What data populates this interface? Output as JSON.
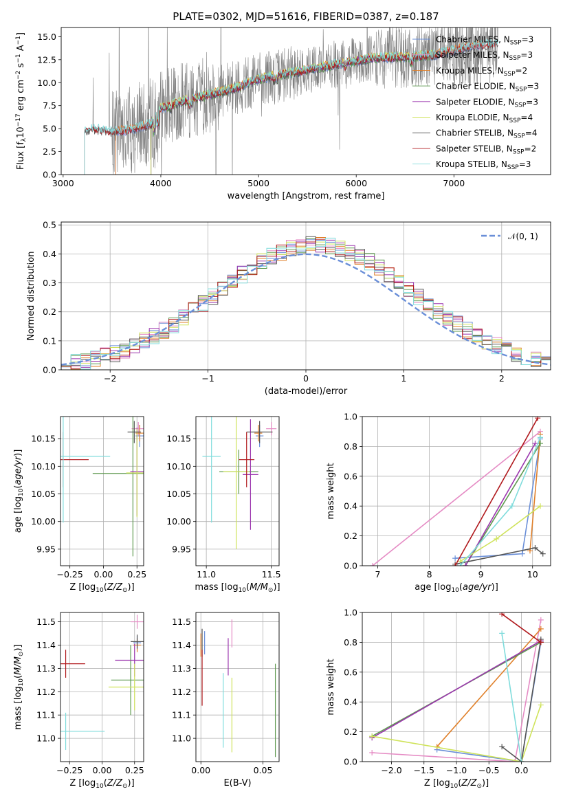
{
  "figure": {
    "title": "PLATE=0302, MJD=51616, FIBERID=0387, z=0.187"
  },
  "colors": {
    "Chabrier MILES": "#6a8fd8",
    "Salpeter MILES": "#e58bc4",
    "Kroupa MILES": "#e0802a",
    "Chabrier ELODIE": "#5f9a50",
    "Salpeter ELODIE": "#9b35ae",
    "Kroupa ELODIE": "#cfe35a",
    "Chabrier STELIB": "#555555",
    "Salpeter STELIB": "#b0181c",
    "Kroupa STELIB": "#80dcdc",
    "data": "#808080",
    "normal": "#6a8fd8"
  },
  "chart_data": [
    {
      "id": "spectrum",
      "type": "line",
      "title": "PLATE=0302, MJD=51616, FIBERID=0387, z=0.187",
      "xlabel": "wavelength [Angstrom, rest frame]",
      "ylabel": "Flux [f_λ 10^-17 erg cm^-2 s^-1 A^-1]",
      "xlim": [
        2980,
        7990
      ],
      "ylim": [
        0,
        16
      ],
      "xticks": [
        3000,
        4000,
        5000,
        6000,
        7000
      ],
      "yticks": [
        0.0,
        2.5,
        5.0,
        7.5,
        10.0,
        12.5,
        15.0
      ],
      "grid": false,
      "legend_position": "top-right",
      "continuum": {
        "x": [
          3220,
          3300,
          3500,
          3700,
          3900,
          4000,
          4200,
          4500,
          4800,
          5000,
          5300,
          5600,
          5900,
          6200,
          6500,
          6800,
          7000,
          7200,
          7450
        ],
        "y": [
          4.8,
          5.0,
          4.7,
          4.9,
          5.5,
          7.2,
          7.9,
          8.7,
          9.5,
          10.4,
          11.0,
          11.6,
          12.2,
          12.7,
          12.8,
          13.0,
          13.5,
          14.0,
          14.3
        ]
      },
      "series": [
        {
          "name": "Chabrier MILES, N_SSP=3",
          "start": 3540,
          "end": 7300
        },
        {
          "name": "Salpeter MILES, N_SSP=3",
          "start": 3540,
          "end": 7300
        },
        {
          "name": "Kroupa MILES, N_SSP=2",
          "start": 3540,
          "end": 7300
        },
        {
          "name": "Chabrier ELODIE, N_SSP=3",
          "start": 3900,
          "end": 6800
        },
        {
          "name": "Salpeter ELODIE, N_SSP=3",
          "start": 3900,
          "end": 6800
        },
        {
          "name": "Kroupa ELODIE, N_SSP=4",
          "start": 3900,
          "end": 6800
        },
        {
          "name": "Chabrier STELIB, N_SSP=4",
          "start": 3220,
          "end": 7450
        },
        {
          "name": "Salpeter STELIB, N_SSP=2",
          "start": 3220,
          "end": 7450
        },
        {
          "name": "Kroupa STELIB, N_SSP=3",
          "start": 3220,
          "end": 7450
        }
      ]
    },
    {
      "id": "residuals",
      "type": "line",
      "xlabel": "(data-model)/error",
      "ylabel": "Normed distribution",
      "xlim": [
        -2.5,
        2.5
      ],
      "ylim": [
        0,
        0.51
      ],
      "xticks": [
        -2,
        -1,
        0,
        1,
        2
      ],
      "yticks": [
        0.0,
        0.1,
        0.2,
        0.3,
        0.4,
        0.5
      ],
      "grid": true,
      "legend_position": "top-right",
      "legend": "𝒩(0, 1)",
      "bin_width": 0.1,
      "bin_start": -2.5
    },
    {
      "id": "age_vs_Z",
      "type": "scatter",
      "xlabel": "Z [log10(Z/Z⊙)]",
      "ylabel": "age [log10(age/yr)]",
      "xlim": [
        -0.32,
        0.3
      ],
      "ylim": [
        9.92,
        10.19
      ],
      "xticks": [
        -0.25,
        0.0,
        0.25
      ],
      "yticks": [
        9.95,
        10.0,
        10.05,
        10.1,
        10.15
      ],
      "grid": true,
      "points": [
        {
          "model": "Chabrier MILES",
          "x": 0.27,
          "y": 10.155,
          "xerr": 0.03,
          "yerr": 0.02
        },
        {
          "model": "Salpeter MILES",
          "x": 0.26,
          "y": 10.168,
          "xerr": 0.05,
          "yerr": 0.012
        },
        {
          "model": "Kroupa MILES",
          "x": 0.27,
          "y": 10.16,
          "xerr": 0.03,
          "yerr": 0.015
        },
        {
          "model": "Chabrier ELODIE",
          "x": 0.22,
          "y": 10.087,
          "xerr": 0.3,
          "yerr": 0.15
        },
        {
          "model": "Salpeter ELODIE",
          "x": 0.25,
          "y": 10.09,
          "xerr": 0.05,
          "yerr": 0.08
        },
        {
          "model": "Kroupa ELODIE",
          "x": 0.25,
          "y": 10.088,
          "xerr": 0.08,
          "yerr": 0.08
        },
        {
          "model": "Chabrier STELIB",
          "x": 0.23,
          "y": 10.162,
          "xerr": 0.05,
          "yerr": 0.02
        },
        {
          "model": "Salpeter STELIB",
          "x": -0.3,
          "y": 10.112,
          "xerr": 0.19,
          "yerr": 0.05
        },
        {
          "model": "Kroupa STELIB",
          "x": -0.3,
          "y": 10.118,
          "xerr": 0.35,
          "yerr": 0.12
        }
      ]
    },
    {
      "id": "age_vs_mass",
      "type": "scatter",
      "xlabel": "mass [log10(M/M⊙)]",
      "ylabel": "",
      "xlim": [
        10.92,
        11.56
      ],
      "ylim": [
        9.92,
        10.19
      ],
      "xticks": [
        11.0,
        11.5
      ],
      "yticks": [
        9.95,
        10.0,
        10.05,
        10.1,
        10.15
      ],
      "grid": true,
      "points": [
        {
          "model": "Chabrier MILES",
          "x": 11.41,
          "y": 10.155,
          "xerr": 0.03,
          "yerr": 0.02
        },
        {
          "model": "Salpeter MILES",
          "x": 11.5,
          "y": 10.168,
          "xerr": 0.04,
          "yerr": 0.012
        },
        {
          "model": "Kroupa MILES",
          "x": 11.4,
          "y": 10.16,
          "xerr": 0.03,
          "yerr": 0.015
        },
        {
          "model": "Chabrier ELODIE",
          "x": 11.25,
          "y": 10.09,
          "xerr": 0.15,
          "yerr": 0.04
        },
        {
          "model": "Salpeter ELODIE",
          "x": 11.34,
          "y": 10.085,
          "xerr": 0.06,
          "yerr": 0.1
        },
        {
          "model": "Kroupa ELODIE",
          "x": 11.23,
          "y": 10.09,
          "xerr": 0.1,
          "yerr": 0.14
        },
        {
          "model": "Chabrier STELIB",
          "x": 11.41,
          "y": 10.162,
          "xerr": 0.1,
          "yerr": 0.02
        },
        {
          "model": "Salpeter STELIB",
          "x": 11.31,
          "y": 10.112,
          "xerr": 0.06,
          "yerr": 0.05
        },
        {
          "model": "Kroupa STELIB",
          "x": 11.04,
          "y": 10.118,
          "xerr": 0.07,
          "yerr": 0.12
        }
      ]
    },
    {
      "id": "mass_weight_vs_age",
      "type": "line",
      "xlabel": "age [log10(age/yr)]",
      "ylabel": "mass weight",
      "xlim": [
        6.7,
        10.35
      ],
      "ylim": [
        0,
        1
      ],
      "xticks": [
        7,
        8,
        9,
        10
      ],
      "yticks": [
        0.0,
        0.2,
        0.4,
        0.6,
        0.8,
        1.0
      ],
      "grid": true,
      "series": [
        {
          "model": "Chabrier MILES",
          "x": [
            8.5,
            9.8,
            10.15
          ],
          "y": [
            0.05,
            0.08,
            0.85
          ]
        },
        {
          "model": "Salpeter MILES",
          "x": [
            6.9,
            10.15
          ],
          "y": [
            0.0,
            0.9
          ]
        },
        {
          "model": "Kroupa MILES",
          "x": [
            9.95,
            10.15
          ],
          "y": [
            0.1,
            0.88
          ]
        },
        {
          "model": "Chabrier ELODIE",
          "x": [
            8.7,
            10.15
          ],
          "y": [
            0.0,
            0.82
          ]
        },
        {
          "model": "Salpeter ELODIE",
          "x": [
            8.7,
            10.05
          ],
          "y": [
            0.0,
            0.82
          ]
        },
        {
          "model": "Kroupa ELODIE",
          "x": [
            8.6,
            9.3,
            10.15
          ],
          "y": [
            0.03,
            0.18,
            0.4
          ]
        },
        {
          "model": "Chabrier STELIB",
          "x": [
            8.5,
            10.05,
            10.2
          ],
          "y": [
            0.01,
            0.12,
            0.08
          ]
        },
        {
          "model": "Salpeter STELIB",
          "x": [
            8.5,
            10.1
          ],
          "y": [
            0.0,
            0.99
          ]
        },
        {
          "model": "Kroupa STELIB",
          "x": [
            8.6,
            9.6,
            10.15
          ],
          "y": [
            0.0,
            0.4,
            0.86
          ]
        }
      ]
    },
    {
      "id": "mass_vs_Z",
      "type": "scatter",
      "xlabel": "Z [log10(Z/Z⊙)]",
      "ylabel": "mass [log10(M/M⊙)]",
      "xlim": [
        -0.32,
        0.32
      ],
      "ylim": [
        10.9,
        11.54
      ],
      "xticks": [
        -0.25,
        0.0,
        0.25
      ],
      "yticks": [
        11.0,
        11.1,
        11.2,
        11.3,
        11.4,
        11.5
      ],
      "grid": true,
      "points": [
        {
          "model": "Chabrier MILES",
          "x": 0.27,
          "y": 11.41,
          "xerr": 0.03,
          "yerr": 0.03
        },
        {
          "model": "Salpeter MILES",
          "x": 0.27,
          "y": 11.5,
          "xerr": 0.05,
          "yerr": 0.03
        },
        {
          "model": "Kroupa MILES",
          "x": 0.27,
          "y": 11.4,
          "xerr": 0.03,
          "yerr": 0.03
        },
        {
          "model": "Chabrier ELODIE",
          "x": 0.22,
          "y": 11.25,
          "xerr": 0.15,
          "yerr": 0.15
        },
        {
          "model": "Salpeter ELODIE",
          "x": 0.25,
          "y": 11.335,
          "xerr": 0.15,
          "yerr": 0.07
        },
        {
          "model": "Kroupa ELODIE",
          "x": 0.25,
          "y": 11.22,
          "xerr": 0.2,
          "yerr": 0.1
        },
        {
          "model": "Chabrier STELIB",
          "x": 0.27,
          "y": 11.415,
          "xerr": 0.05,
          "yerr": 0.03
        },
        {
          "model": "Salpeter STELIB",
          "x": -0.28,
          "y": 11.32,
          "xerr": 0.15,
          "yerr": 0.06
        },
        {
          "model": "Kroupa STELIB",
          "x": -0.28,
          "y": 11.03,
          "xerr": 0.3,
          "yerr": 0.08
        }
      ]
    },
    {
      "id": "mass_vs_EBV",
      "type": "scatter",
      "xlabel": "E(B-V)",
      "ylabel": "",
      "xlim": [
        -0.004,
        0.063
      ],
      "ylim": [
        10.9,
        11.54
      ],
      "xticks": [
        0.0,
        0.05
      ],
      "yticks": [
        11.0,
        11.1,
        11.2,
        11.3,
        11.4,
        11.5
      ],
      "grid": true,
      "points": [
        {
          "model": "Chabrier MILES",
          "x": 0.003,
          "y": 11.41,
          "xerr": 0,
          "yerr": 0.05
        },
        {
          "model": "Salpeter MILES",
          "x": 0.025,
          "y": 11.45,
          "xerr": 0,
          "yerr": 0.06
        },
        {
          "model": "Kroupa MILES",
          "x": 0.0,
          "y": 11.4,
          "xerr": 0,
          "yerr": 0.05
        },
        {
          "model": "Chabrier ELODIE",
          "x": 0.06,
          "y": 11.12,
          "xerr": 0,
          "yerr": 0.2
        },
        {
          "model": "Salpeter ELODIE",
          "x": 0.022,
          "y": 11.35,
          "xerr": 0,
          "yerr": 0.08
        },
        {
          "model": "Kroupa ELODIE",
          "x": 0.025,
          "y": 11.1,
          "xerr": 0,
          "yerr": 0.16
        },
        {
          "model": "Chabrier STELIB",
          "x": 0.001,
          "y": 11.41,
          "xerr": 0,
          "yerr": 0.06
        },
        {
          "model": "Salpeter STELIB",
          "x": 0.001,
          "y": 11.26,
          "xerr": 0,
          "yerr": 0.12
        },
        {
          "model": "Kroupa STELIB",
          "x": 0.018,
          "y": 11.12,
          "xerr": 0,
          "yerr": 0.16
        }
      ]
    },
    {
      "id": "mass_weight_vs_Z",
      "type": "line",
      "xlabel": "Z [log10(Z/Z⊙)]",
      "ylabel": "mass weight",
      "xlim": [
        -2.45,
        0.45
      ],
      "ylim": [
        0,
        1
      ],
      "xticks": [
        -2.0,
        -1.5,
        -1.0,
        -0.5,
        0.0
      ],
      "yticks": [
        0.0,
        0.2,
        0.4,
        0.6,
        0.8,
        1.0
      ],
      "grid": true,
      "series": [
        {
          "model": "Chabrier MILES",
          "x": [
            -1.3,
            0.0,
            0.3
          ],
          "y": [
            0.08,
            0.0,
            0.8
          ]
        },
        {
          "model": "Salpeter MILES",
          "x": [
            -2.3,
            -0.1,
            0.3
          ],
          "y": [
            0.06,
            0.0,
            0.95
          ]
        },
        {
          "model": "Kroupa MILES",
          "x": [
            -1.3,
            0.3
          ],
          "y": [
            0.1,
            0.89
          ]
        },
        {
          "model": "Chabrier ELODIE",
          "x": [
            -2.3,
            0.3
          ],
          "y": [
            0.17,
            0.8
          ]
        },
        {
          "model": "Salpeter ELODIE",
          "x": [
            -2.3,
            0.3
          ],
          "y": [
            0.16,
            0.81
          ]
        },
        {
          "model": "Kroupa ELODIE",
          "x": [
            -2.3,
            0.0,
            0.3
          ],
          "y": [
            0.17,
            0.0,
            0.38
          ]
        },
        {
          "model": "Chabrier STELIB",
          "x": [
            -0.3,
            0.0,
            0.3
          ],
          "y": [
            0.1,
            0.0,
            0.82
          ]
        },
        {
          "model": "Salpeter STELIB",
          "x": [
            -0.3,
            0.3
          ],
          "y": [
            0.99,
            0.8
          ]
        },
        {
          "model": "Kroupa STELIB",
          "x": [
            -0.3,
            0.0
          ],
          "y": [
            0.86,
            0.0
          ]
        }
      ]
    }
  ]
}
